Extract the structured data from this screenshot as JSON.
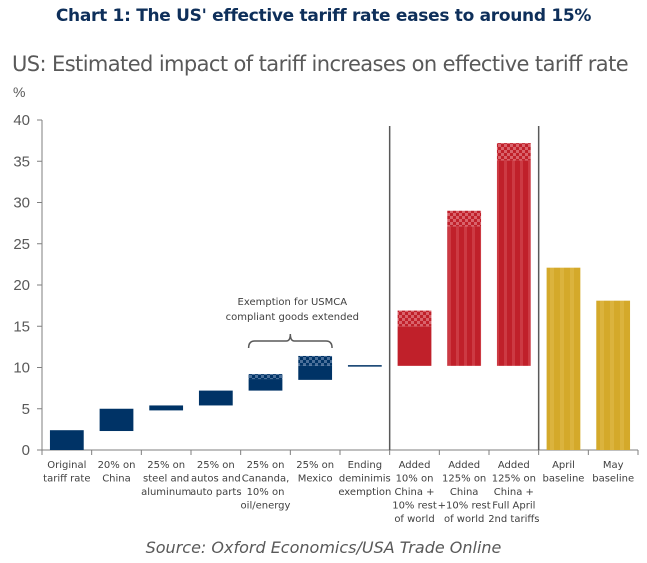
{
  "header": {
    "title": "Chart 1: The US' effective tariff rate eases to around 15%",
    "subtitle": "US: Estimated impact of tariff increases on effective tariff rate",
    "unit": "%"
  },
  "footer": {
    "source": "Source: Oxford Economics/USA Trade Online"
  },
  "colors": {
    "navy": "#003366",
    "navy_hatch": "#4a6f99",
    "red": "#c0202a",
    "red_hatch": "#d9636b",
    "gold": "#d4a92a",
    "axis": "#7f7f7f",
    "divider": "#595959"
  },
  "chart_data": {
    "type": "bar",
    "subtype": "floating waterfall",
    "title": "Chart 1: The US' effective tariff rate eases to around 15%",
    "subtitle": "US: Estimated impact of tariff increases on effective tariff rate",
    "ylabel": "%",
    "xlabel": "",
    "ylim": [
      0,
      40
    ],
    "yticks": [
      0,
      5,
      10,
      15,
      20,
      25,
      30,
      35,
      40
    ],
    "grid": false,
    "legend": "none",
    "categories": [
      [
        "Original",
        "tariff rate"
      ],
      [
        "20% on",
        "China"
      ],
      [
        "25% on",
        "steel and",
        "aluminum"
      ],
      [
        "25% on",
        "autos and",
        "auto parts"
      ],
      [
        "25% on",
        "Cananda,",
        "10% on",
        "oil/energy"
      ],
      [
        "25% on",
        "Mexico"
      ],
      [
        "Ending",
        "deminimis",
        "exemption"
      ],
      [
        "Added",
        "10% on",
        "China +",
        "10% rest",
        "of world"
      ],
      [
        "Added",
        "125% on",
        "China",
        "+10% rest",
        "of world"
      ],
      [
        "Added",
        "125% on",
        "China +",
        "Full April",
        "2nd tariffs"
      ],
      [
        "April",
        "baseline"
      ],
      [
        "May",
        "baseline"
      ]
    ],
    "bars": [
      {
        "name": "Original tariff rate",
        "base": 0,
        "top": 2.4,
        "hatch_from": null,
        "color": "navy"
      },
      {
        "name": "20% on China",
        "base": 2.3,
        "top": 5.0,
        "hatch_from": null,
        "color": "navy"
      },
      {
        "name": "25% on steel and aluminum",
        "base": 4.8,
        "top": 5.4,
        "hatch_from": null,
        "color": "navy"
      },
      {
        "name": "25% on autos and auto parts",
        "base": 5.4,
        "top": 7.2,
        "hatch_from": null,
        "color": "navy"
      },
      {
        "name": "25% on Cananda, 10% on oil/energy",
        "base": 7.2,
        "top": 9.2,
        "hatch_from": 8.6,
        "color": "navy"
      },
      {
        "name": "25% on Mexico",
        "base": 8.5,
        "top": 11.4,
        "hatch_from": 10.2,
        "color": "navy"
      },
      {
        "name": "Ending deminimis exemption",
        "base": 10.2,
        "top": 10.2,
        "hatch_from": null,
        "color": "navy"
      },
      {
        "name": "Added 10% on China + 10% rest of world",
        "base": 10.2,
        "top": 16.9,
        "hatch_from": 15.0,
        "color": "red"
      },
      {
        "name": "Added 125% on China +10% rest of world",
        "base": 10.2,
        "top": 29.0,
        "hatch_from": 27.1,
        "color": "red"
      },
      {
        "name": "Added 125% on China + Full April 2nd tariffs",
        "base": 10.2,
        "top": 37.2,
        "hatch_from": 35.1,
        "color": "red"
      },
      {
        "name": "April baseline",
        "base": 0,
        "top": 22.1,
        "hatch_from": null,
        "color": "gold"
      },
      {
        "name": "May baseline",
        "base": 0,
        "top": 18.1,
        "hatch_from": null,
        "color": "gold"
      }
    ],
    "dividers_after_category_index": [
      6,
      9
    ],
    "annotations": [
      {
        "text": [
          "Exemption for USMCA",
          "compliant goods extended"
        ],
        "spans_categories": [
          4,
          5
        ],
        "style": "brace"
      }
    ]
  }
}
